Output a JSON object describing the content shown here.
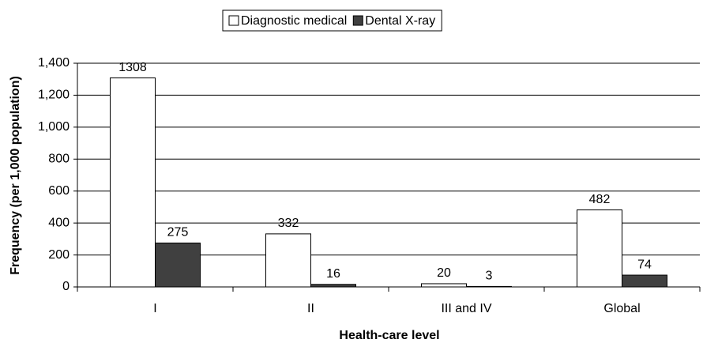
{
  "chart_data": {
    "type": "bar",
    "categories": [
      "I",
      "II",
      "III and IV",
      "Global"
    ],
    "series": [
      {
        "name": "Diagnostic medical",
        "color": "#ffffff",
        "values": [
          1308,
          332,
          20,
          482
        ]
      },
      {
        "name": "Dental X-ray",
        "color": "#404040",
        "values": [
          275,
          16,
          3,
          74
        ]
      }
    ],
    "xlabel": "Health-care level",
    "ylabel": "Frequency (per 1,000 population)",
    "ylim": [
      0,
      1400
    ],
    "yticks": [
      0,
      200,
      400,
      600,
      800,
      {
        "value": 1000,
        "label": "1,000"
      },
      {
        "value": 1200,
        "label": "1,200"
      },
      {
        "value": 1400,
        "label": "1,400"
      }
    ],
    "grid": true,
    "legend": "top"
  }
}
